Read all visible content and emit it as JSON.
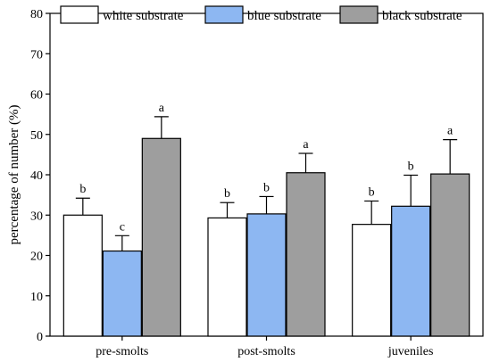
{
  "chart_data": {
    "type": "bar",
    "title": "",
    "xlabel": "",
    "ylabel": "percentage of number (%)",
    "ylim": [
      0,
      80
    ],
    "yticks": [
      0,
      10,
      20,
      30,
      40,
      50,
      60,
      70,
      80
    ],
    "categories": [
      "pre-smolts",
      "post-smolts",
      "juveniles"
    ],
    "legend_position": "top",
    "series": [
      {
        "name": "white substrate",
        "color": "#ffffff",
        "values": [
          30.0,
          29.3,
          27.7
        ],
        "errors": [
          4.2,
          3.8,
          5.8
        ],
        "labels": [
          "b",
          "b",
          "b"
        ]
      },
      {
        "name": "blue substrate",
        "color": "#8db7f2",
        "values": [
          21.1,
          30.3,
          32.2
        ],
        "errors": [
          3.8,
          4.3,
          7.7
        ],
        "labels": [
          "c",
          "b",
          "b"
        ]
      },
      {
        "name": "black substrate",
        "color": "#9e9e9e",
        "values": [
          49.0,
          40.5,
          40.2
        ],
        "errors": [
          5.4,
          4.8,
          8.5
        ],
        "labels": [
          "a",
          "a",
          "a"
        ]
      }
    ]
  }
}
